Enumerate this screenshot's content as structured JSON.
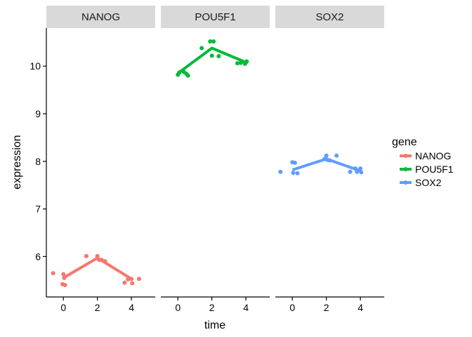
{
  "chart_data": {
    "type": "line",
    "facets": [
      "NANOG",
      "POU5F1",
      "SOX2"
    ],
    "xlabel": "time",
    "ylabel": "expression",
    "x_ticks": [
      0,
      2,
      4
    ],
    "y_ticks": [
      6,
      7,
      8,
      9,
      10
    ],
    "xlim": [
      -1,
      5.4
    ],
    "ylim": [
      5.15,
      10.8
    ],
    "grid": false,
    "legend": {
      "title": "gene",
      "position": "right",
      "entries": [
        "NANOG",
        "POU5F1",
        "SOX2"
      ]
    },
    "colors": {
      "NANOG": "#F8766D",
      "POU5F1": "#00BA38",
      "SOX2": "#619CFF"
    },
    "series": [
      {
        "name": "NANOG",
        "line": {
          "x": [
            0,
            2,
            4
          ],
          "y": [
            5.55,
            5.97,
            5.53
          ]
        },
        "points": [
          {
            "x": -0.6,
            "y": 5.65
          },
          {
            "x": 0.0,
            "y": 5.63
          },
          {
            "x": 0.05,
            "y": 5.55
          },
          {
            "x": -0.05,
            "y": 5.42
          },
          {
            "x": 0.1,
            "y": 5.4
          },
          {
            "x": 1.35,
            "y": 6.01
          },
          {
            "x": 2.0,
            "y": 6.01
          },
          {
            "x": 2.1,
            "y": 5.93
          },
          {
            "x": 2.25,
            "y": 5.93
          },
          {
            "x": 2.45,
            "y": 5.9
          },
          {
            "x": 3.6,
            "y": 5.45
          },
          {
            "x": 3.8,
            "y": 5.52
          },
          {
            "x": 4.0,
            "y": 5.53
          },
          {
            "x": 4.05,
            "y": 5.44
          },
          {
            "x": 4.45,
            "y": 5.53
          }
        ]
      },
      {
        "name": "POU5F1",
        "line": {
          "x": [
            0,
            2,
            4
          ],
          "y": [
            9.85,
            10.38,
            10.08
          ]
        },
        "points": [
          {
            "x": 0.0,
            "y": 9.82
          },
          {
            "x": 0.1,
            "y": 9.87
          },
          {
            "x": 0.35,
            "y": 9.88
          },
          {
            "x": 0.5,
            "y": 9.84
          },
          {
            "x": 0.6,
            "y": 9.8
          },
          {
            "x": 1.4,
            "y": 10.38
          },
          {
            "x": 1.9,
            "y": 10.52
          },
          {
            "x": 2.1,
            "y": 10.52
          },
          {
            "x": 2.0,
            "y": 10.22
          },
          {
            "x": 2.4,
            "y": 10.21
          },
          {
            "x": 3.5,
            "y": 10.06
          },
          {
            "x": 3.7,
            "y": 10.07
          },
          {
            "x": 3.95,
            "y": 10.05
          },
          {
            "x": 4.0,
            "y": 10.08
          },
          {
            "x": 4.05,
            "y": 10.1
          }
        ]
      },
      {
        "name": "SOX2",
        "line": {
          "x": [
            0,
            2,
            4
          ],
          "y": [
            7.82,
            8.05,
            7.8
          ]
        },
        "points": [
          {
            "x": -0.7,
            "y": 7.78
          },
          {
            "x": 0.0,
            "y": 7.98
          },
          {
            "x": 0.15,
            "y": 7.97
          },
          {
            "x": 0.05,
            "y": 7.76
          },
          {
            "x": 0.3,
            "y": 7.75
          },
          {
            "x": 2.0,
            "y": 8.12
          },
          {
            "x": 2.05,
            "y": 8.03
          },
          {
            "x": 2.2,
            "y": 8.02
          },
          {
            "x": 2.6,
            "y": 8.12
          },
          {
            "x": 1.9,
            "y": 8.05
          },
          {
            "x": 3.4,
            "y": 7.78
          },
          {
            "x": 3.7,
            "y": 7.85
          },
          {
            "x": 3.8,
            "y": 7.78
          },
          {
            "x": 4.0,
            "y": 7.85
          },
          {
            "x": 4.05,
            "y": 7.77
          }
        ]
      }
    ]
  }
}
